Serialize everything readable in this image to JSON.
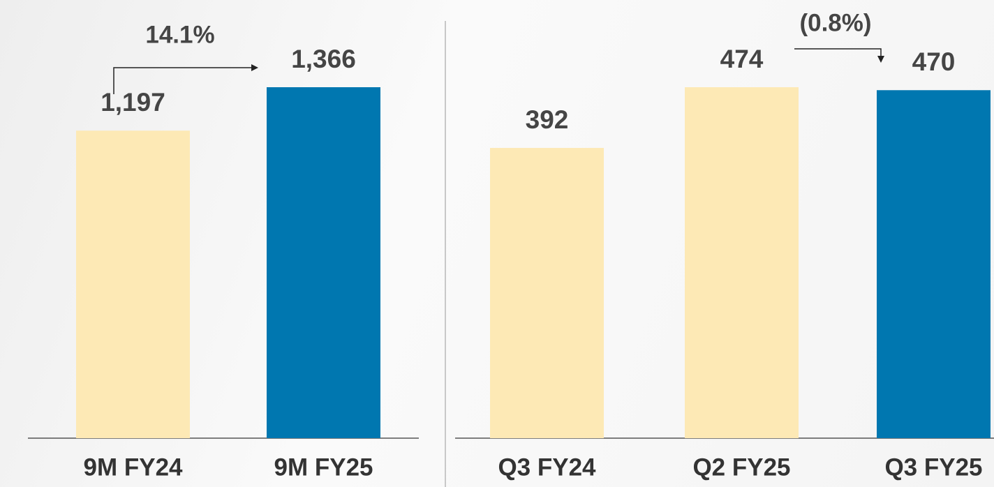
{
  "chart_data": [
    {
      "type": "bar",
      "categories": [
        "9M FY24",
        "9M FY25"
      ],
      "values": [
        1197,
        1366
      ],
      "value_labels": [
        "1,197",
        "1,366"
      ],
      "colors": [
        "#fde9b5",
        "#0077b0"
      ],
      "annotation": "14.1%"
    },
    {
      "type": "bar",
      "categories": [
        "Q3 FY24",
        "Q2 FY25",
        "Q3 FY25"
      ],
      "values": [
        392,
        474,
        470
      ],
      "colors": [
        "#fde9b5",
        "#fde9b5",
        "#0077b0"
      ],
      "annotation": "(0.8%)"
    }
  ]
}
